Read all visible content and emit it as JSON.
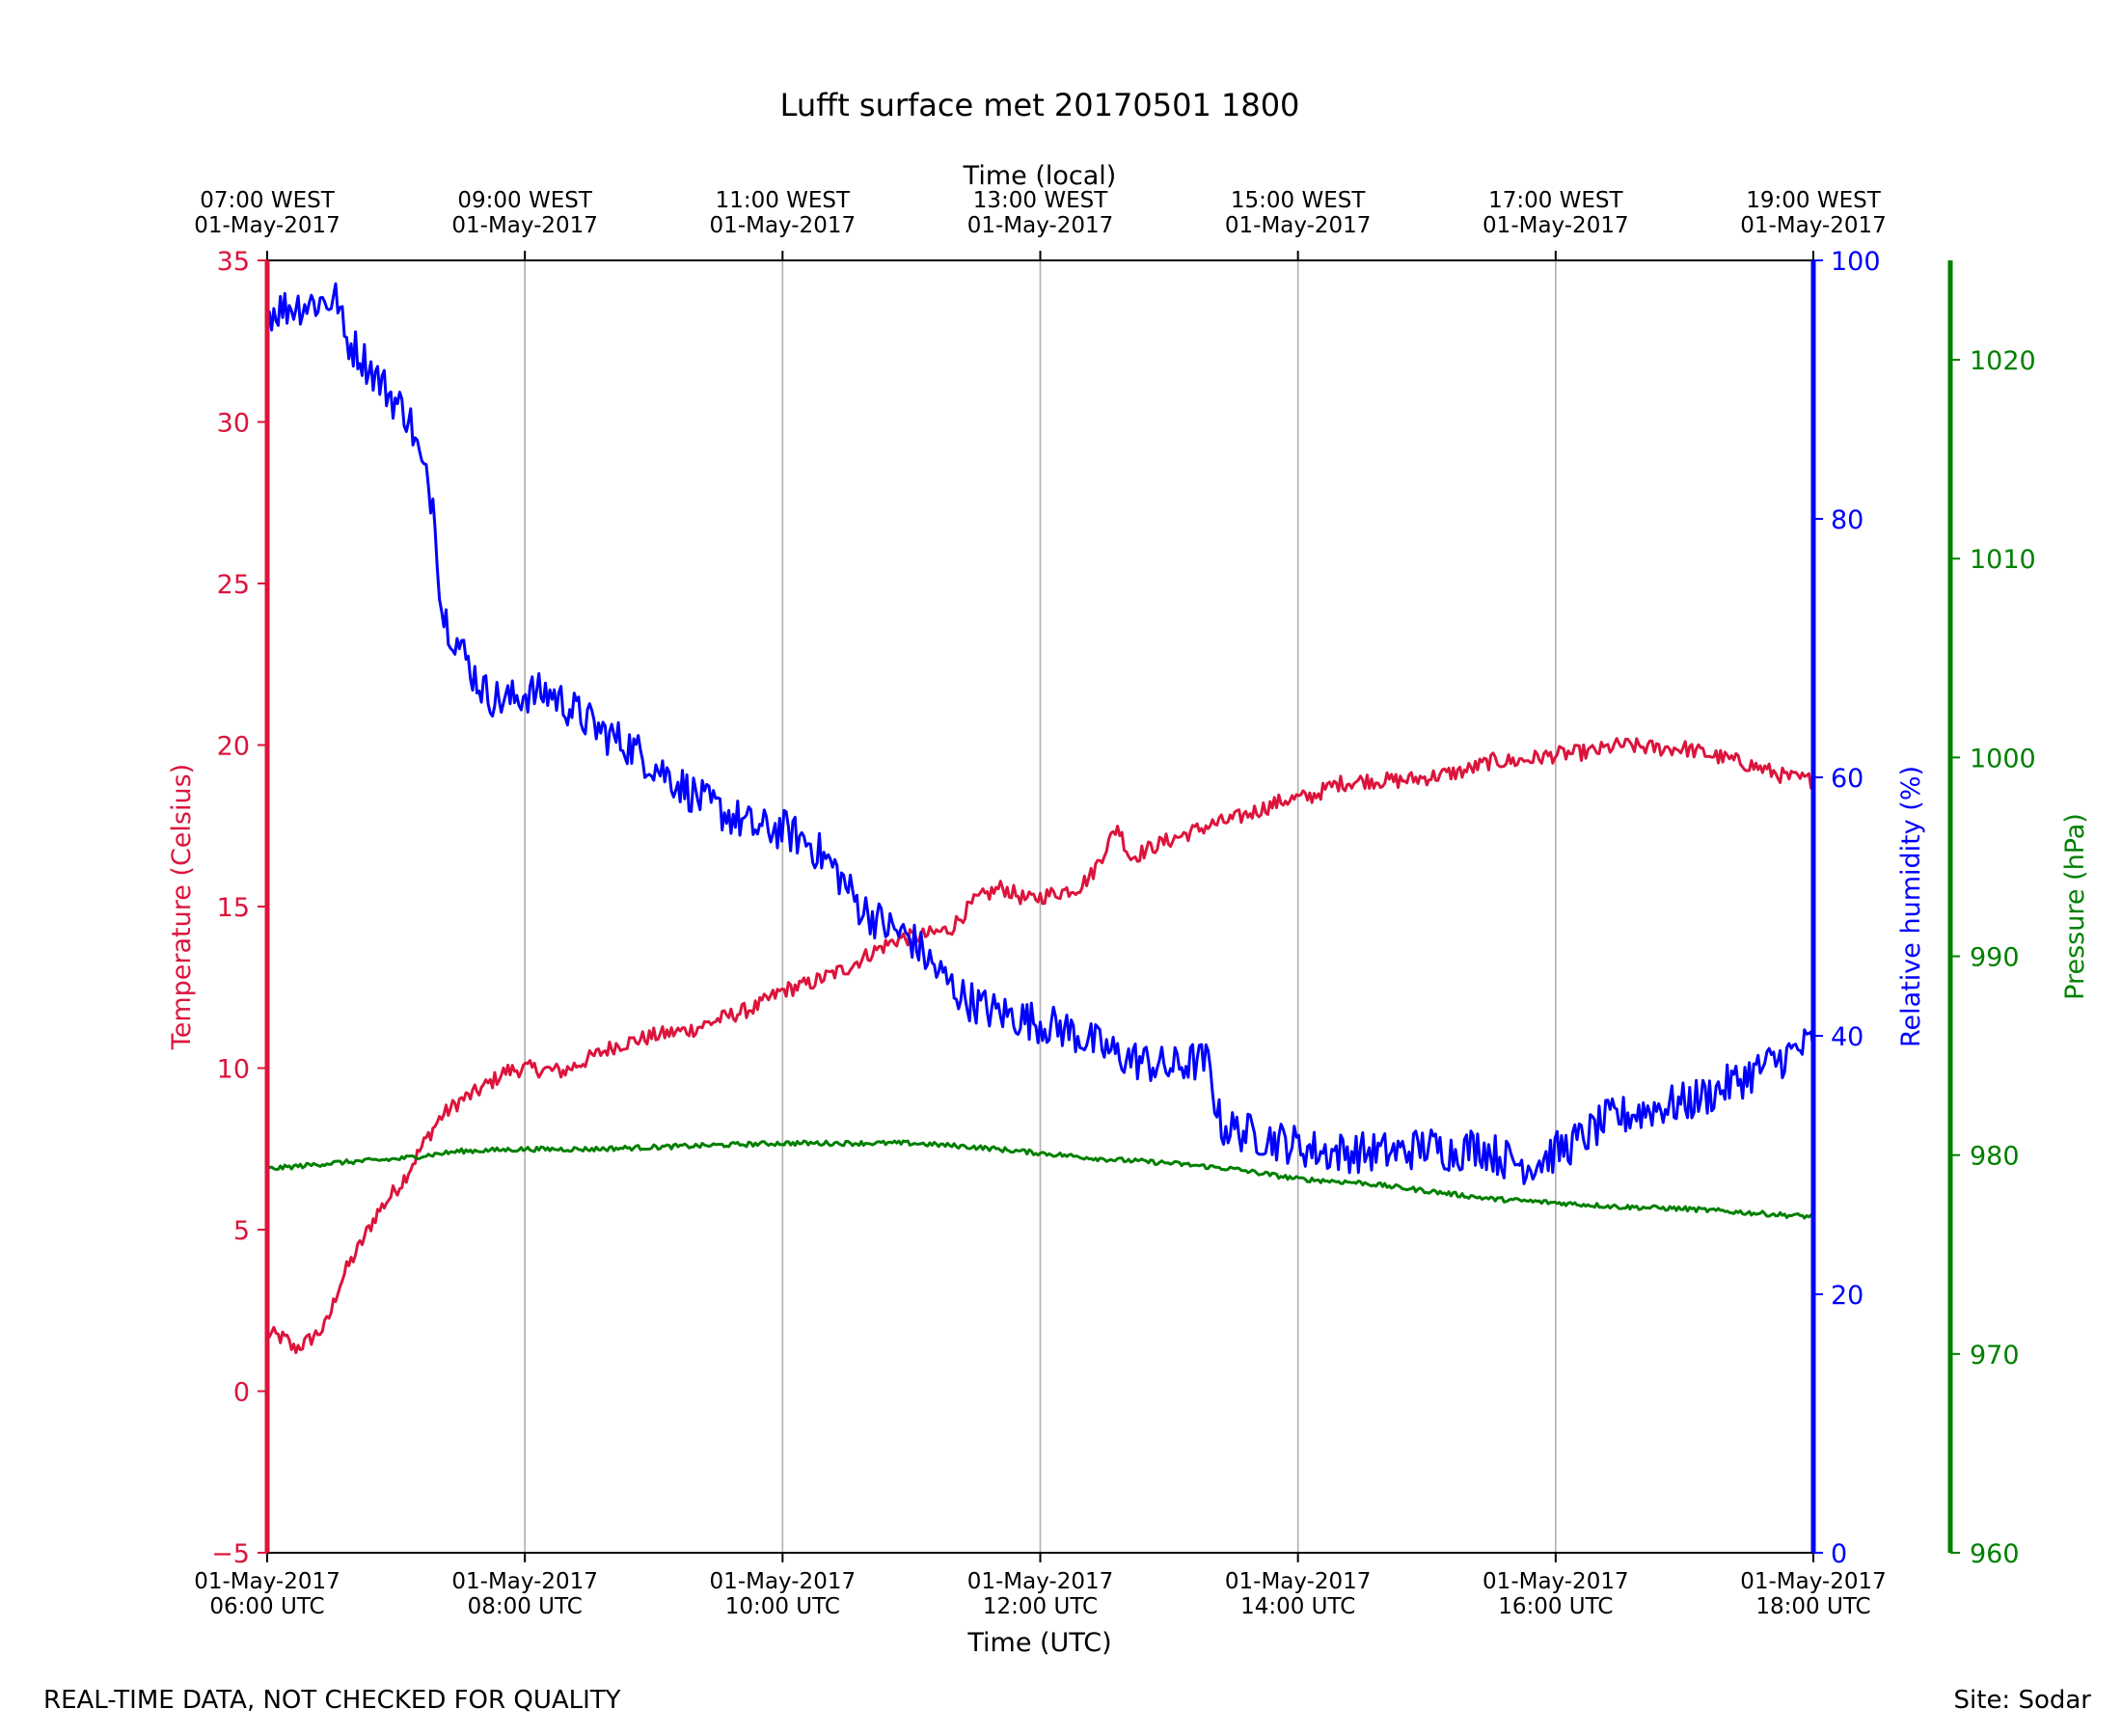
{
  "chart_data": {
    "type": "line",
    "title": "Lufft surface met 20170501 1800",
    "top_axis": {
      "label": "Time (local)",
      "ticks": [
        {
          "hour": 6,
          "line1": "07:00 WEST",
          "line2": "01-May-2017"
        },
        {
          "hour": 8,
          "line1": "09:00 WEST",
          "line2": "01-May-2017"
        },
        {
          "hour": 10,
          "line1": "11:00 WEST",
          "line2": "01-May-2017"
        },
        {
          "hour": 12,
          "line1": "13:00 WEST",
          "line2": "01-May-2017"
        },
        {
          "hour": 14,
          "line1": "15:00 WEST",
          "line2": "01-May-2017"
        },
        {
          "hour": 16,
          "line1": "17:00 WEST",
          "line2": "01-May-2017"
        },
        {
          "hour": 18,
          "line1": "19:00 WEST",
          "line2": "01-May-2017"
        }
      ]
    },
    "bottom_axis": {
      "label": "Time (UTC)",
      "xlim": [
        6,
        18
      ],
      "ticks": [
        {
          "hour": 6,
          "line1": "01-May-2017",
          "line2": "06:00 UTC"
        },
        {
          "hour": 8,
          "line1": "01-May-2017",
          "line2": "08:00 UTC"
        },
        {
          "hour": 10,
          "line1": "01-May-2017",
          "line2": "10:00 UTC"
        },
        {
          "hour": 12,
          "line1": "01-May-2017",
          "line2": "12:00 UTC"
        },
        {
          "hour": 14,
          "line1": "01-May-2017",
          "line2": "14:00 UTC"
        },
        {
          "hour": 16,
          "line1": "01-May-2017",
          "line2": "16:00 UTC"
        },
        {
          "hour": 18,
          "line1": "01-May-2017",
          "line2": "18:00 UTC"
        }
      ]
    },
    "grid": "vertical",
    "axes": [
      {
        "id": "temp",
        "label": "Temperature (Celsius)",
        "color": "#dc143c",
        "ylim": [
          -5,
          35
        ],
        "ticks": [
          {
            "v": -5,
            "t": "−5"
          },
          {
            "v": 0,
            "t": "0"
          },
          {
            "v": 5,
            "t": "5"
          },
          {
            "v": 10,
            "t": "10"
          },
          {
            "v": 15,
            "t": "15"
          },
          {
            "v": 20,
            "t": "20"
          },
          {
            "v": 25,
            "t": "25"
          },
          {
            "v": 30,
            "t": "30"
          },
          {
            "v": 35,
            "t": "35"
          }
        ]
      },
      {
        "id": "rh",
        "label": "Relative humidity (%)",
        "color": "#0000ff",
        "ylim": [
          0,
          100
        ],
        "ticks": [
          {
            "v": 0,
            "t": "0"
          },
          {
            "v": 20,
            "t": "20"
          },
          {
            "v": 40,
            "t": "40"
          },
          {
            "v": 60,
            "t": "60"
          },
          {
            "v": 80,
            "t": "80"
          },
          {
            "v": 100,
            "t": "100"
          }
        ]
      },
      {
        "id": "pres",
        "label": "Pressure (hPa)",
        "color": "#008000",
        "ylim": [
          960,
          1025
        ],
        "ticks": [
          {
            "v": 960,
            "t": "960"
          },
          {
            "v": 970,
            "t": "970"
          },
          {
            "v": 980,
            "t": "980"
          },
          {
            "v": 990,
            "t": "990"
          },
          {
            "v": 1000,
            "t": "1000"
          },
          {
            "v": 1010,
            "t": "1010"
          },
          {
            "v": 1020,
            "t": "1020"
          }
        ]
      }
    ],
    "series": [
      {
        "name": "Temperature",
        "axis": "temp",
        "color": "#dc143c",
        "noise": 0.25,
        "x": [
          6.0,
          6.15,
          6.2,
          6.3,
          6.45,
          6.5,
          6.55,
          6.62,
          6.72,
          6.85,
          6.95,
          7.05,
          7.15,
          7.25,
          7.35,
          7.5,
          7.6,
          7.75,
          7.85,
          8.0,
          8.3,
          8.5,
          8.7,
          9.0,
          9.3,
          9.5,
          9.8,
          10.0,
          10.2,
          10.5,
          10.7,
          10.9,
          11.1,
          11.3,
          11.5,
          11.7,
          11.9,
          12.1,
          12.3,
          12.4,
          12.6,
          12.7,
          12.9,
          13.1,
          13.3,
          13.5,
          13.7,
          13.9,
          14.1,
          14.3,
          14.5,
          14.8,
          15.0,
          15.3,
          15.5,
          15.7,
          16.0,
          16.3,
          16.5,
          16.8,
          17.0,
          17.3,
          17.5,
          17.8,
          18.0
        ],
        "y": [
          1.8,
          1.6,
          1.3,
          1.5,
          2.0,
          2.5,
          3.2,
          3.8,
          4.5,
          5.5,
          6.0,
          6.5,
          7.2,
          7.9,
          8.5,
          9.0,
          9.2,
          9.6,
          9.9,
          10.0,
          9.9,
          10.3,
          10.7,
          11.0,
          11.2,
          11.5,
          11.9,
          12.4,
          12.6,
          13.1,
          13.6,
          14.0,
          14.1,
          14.3,
          15.2,
          15.6,
          15.2,
          15.4,
          15.6,
          16.0,
          17.5,
          16.5,
          16.9,
          17.2,
          17.5,
          17.7,
          18.0,
          18.3,
          18.4,
          18.8,
          18.9,
          18.9,
          19.0,
          19.2,
          19.5,
          19.5,
          19.7,
          19.8,
          20.0,
          19.9,
          19.9,
          19.6,
          19.4,
          19.0,
          18.9
        ]
      },
      {
        "name": "Relative humidity",
        "axis": "rh",
        "color": "#0000ff",
        "noise": 1.6,
        "x": [
          6.0,
          6.2,
          6.4,
          6.55,
          6.6,
          6.7,
          6.85,
          7.0,
          7.1,
          7.2,
          7.3,
          7.35,
          7.45,
          7.6,
          7.7,
          7.8,
          7.9,
          8.0,
          8.2,
          8.4,
          8.6,
          8.8,
          9.0,
          9.2,
          9.4,
          9.6,
          9.8,
          10.0,
          10.2,
          10.4,
          10.6,
          10.8,
          11.0,
          11.2,
          11.4,
          11.6,
          11.8,
          12.0,
          12.2,
          12.4,
          12.6,
          12.8,
          13.0,
          13.2,
          13.3,
          13.4,
          13.6,
          13.8,
          14.0,
          14.2,
          14.4,
          14.6,
          14.8,
          15.0,
          15.2,
          15.4,
          15.6,
          15.8,
          16.0,
          16.2,
          16.4,
          16.6,
          16.8,
          17.0,
          17.2,
          17.4,
          17.6,
          17.8,
          18.0
        ],
        "y": [
          96,
          96.5,
          96.8,
          97,
          94,
          93,
          91,
          89,
          88,
          84,
          81,
          73,
          71,
          68,
          66.5,
          66,
          66,
          66.5,
          66.5,
          65,
          63.5,
          62.5,
          61,
          59.5,
          58,
          57,
          56,
          56,
          55,
          53,
          50,
          48.5,
          47.5,
          45,
          43,
          42,
          41.5,
          41,
          40.5,
          39.5,
          38.5,
          38,
          37.5,
          38,
          38,
          33,
          32.5,
          32,
          31.5,
          31,
          31,
          31,
          31,
          31.5,
          31,
          31.5,
          30.5,
          30,
          31,
          32,
          33.5,
          34,
          34.5,
          34.8,
          35.5,
          36.5,
          37.5,
          38.5,
          39.5
        ]
      },
      {
        "name": "Pressure",
        "axis": "pres",
        "color": "#008000",
        "noise": 0.12,
        "x": [
          6.0,
          6.5,
          7.0,
          7.5,
          8.0,
          8.5,
          9.0,
          9.5,
          10.0,
          10.5,
          11.0,
          11.5,
          12.0,
          12.5,
          13.0,
          13.5,
          14.0,
          14.5,
          15.0,
          15.5,
          16.0,
          16.5,
          17.0,
          17.5,
          18.0
        ],
        "y": [
          979.3,
          979.6,
          979.8,
          980.2,
          980.3,
          980.3,
          980.4,
          980.5,
          980.6,
          980.6,
          980.6,
          980.4,
          980.1,
          979.8,
          979.6,
          979.3,
          978.8,
          978.6,
          978.2,
          977.8,
          977.6,
          977.4,
          977.3,
          977.1,
          976.9
        ]
      }
    ]
  },
  "footer": {
    "left_note": "REAL-TIME DATA, NOT CHECKED FOR QUALITY",
    "site": "Site: Sodar"
  }
}
